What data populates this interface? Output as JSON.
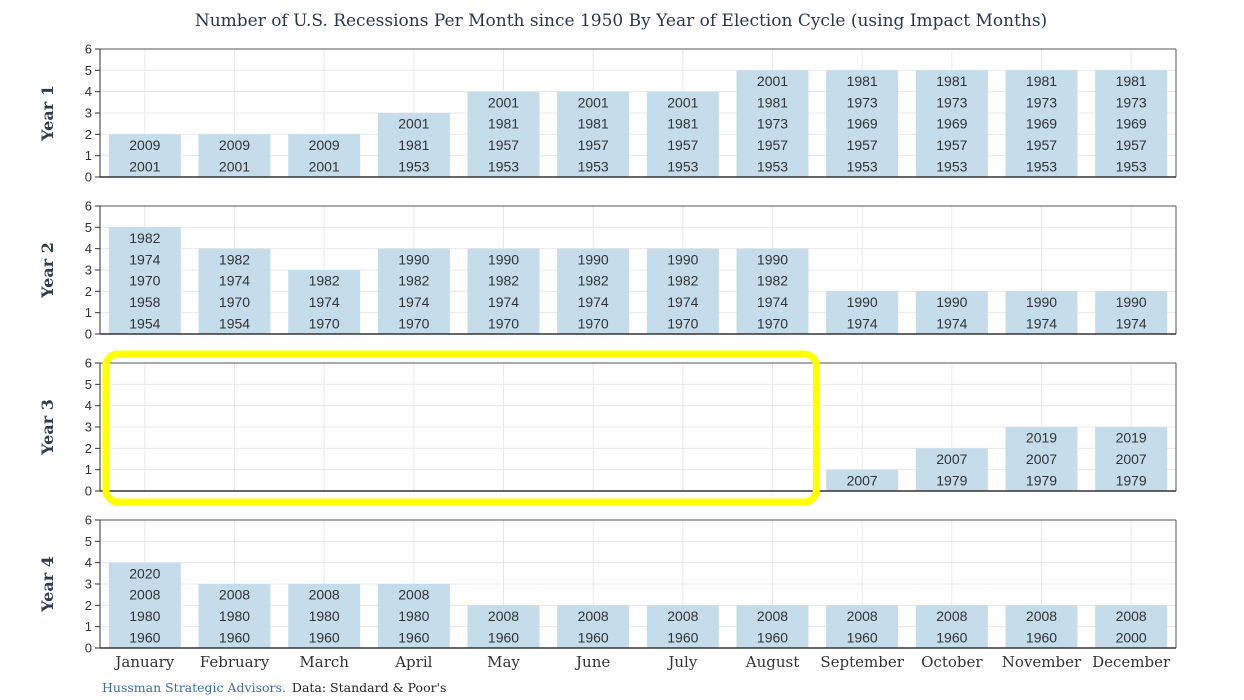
{
  "chart_data": {
    "type": "bar",
    "title": "Number of U.S. Recessions Per Month since 1950 By Year of Election Cycle (using Impact Months)",
    "categories": [
      "January",
      "February",
      "March",
      "April",
      "May",
      "June",
      "July",
      "August",
      "September",
      "October",
      "November",
      "December"
    ],
    "ylim": [
      0,
      6
    ],
    "yticks": [
      "0",
      "1",
      "2",
      "3",
      "4",
      "5",
      "6"
    ],
    "grid": true,
    "panels": [
      {
        "name": "Year 1",
        "values": [
          2,
          2,
          2,
          3,
          4,
          4,
          4,
          5,
          5,
          5,
          5,
          5
        ],
        "labels": [
          [
            "2001",
            "2009"
          ],
          [
            "2001",
            "2009"
          ],
          [
            "2001",
            "2009"
          ],
          [
            "1953",
            "1981",
            "2001"
          ],
          [
            "1953",
            "1957",
            "1981",
            "2001"
          ],
          [
            "1953",
            "1957",
            "1981",
            "2001"
          ],
          [
            "1953",
            "1957",
            "1981",
            "2001"
          ],
          [
            "1953",
            "1957",
            "1973",
            "1981",
            "2001"
          ],
          [
            "1953",
            "1957",
            "1969",
            "1973",
            "1981"
          ],
          [
            "1953",
            "1957",
            "1969",
            "1973",
            "1981"
          ],
          [
            "1953",
            "1957",
            "1969",
            "1973",
            "1981"
          ],
          [
            "1953",
            "1957",
            "1969",
            "1973",
            "1981"
          ]
        ]
      },
      {
        "name": "Year 2",
        "values": [
          5,
          4,
          3,
          4,
          4,
          4,
          4,
          4,
          2,
          2,
          2,
          2
        ],
        "labels": [
          [
            "1954",
            "1958",
            "1970",
            "1974",
            "1982"
          ],
          [
            "1954",
            "1970",
            "1974",
            "1982"
          ],
          [
            "1970",
            "1974",
            "1982"
          ],
          [
            "1970",
            "1974",
            "1982",
            "1990"
          ],
          [
            "1970",
            "1974",
            "1982",
            "1990"
          ],
          [
            "1970",
            "1974",
            "1982",
            "1990"
          ],
          [
            "1970",
            "1974",
            "1982",
            "1990"
          ],
          [
            "1970",
            "1974",
            "1982",
            "1990"
          ],
          [
            "1974",
            "1990"
          ],
          [
            "1974",
            "1990"
          ],
          [
            "1974",
            "1990"
          ],
          [
            "1974",
            "1990"
          ]
        ]
      },
      {
        "name": "Year 3",
        "values": [
          0,
          0,
          0,
          0,
          0,
          0,
          0,
          0,
          1,
          2,
          3,
          3
        ],
        "labels": [
          [],
          [],
          [],
          [],
          [],
          [],
          [],
          [],
          [
            "2007"
          ],
          [
            "1979",
            "2007"
          ],
          [
            "1979",
            "2007",
            "2019"
          ],
          [
            "1979",
            "2007",
            "2019"
          ]
        ],
        "highlight": {
          "from": "January",
          "to": "August",
          "color": "#ffff00"
        }
      },
      {
        "name": "Year 4",
        "values": [
          4,
          3,
          3,
          3,
          2,
          2,
          2,
          2,
          2,
          2,
          2,
          2
        ],
        "labels": [
          [
            "1960",
            "1980",
            "2008",
            "2020"
          ],
          [
            "1960",
            "1980",
            "2008"
          ],
          [
            "1960",
            "1980",
            "2008"
          ],
          [
            "1960",
            "1980",
            "2008"
          ],
          [
            "1960",
            "2008"
          ],
          [
            "1960",
            "2008"
          ],
          [
            "1960",
            "2008"
          ],
          [
            "1960",
            "2008"
          ],
          [
            "1960",
            "2008"
          ],
          [
            "1960",
            "2008"
          ],
          [
            "1960",
            "2008"
          ],
          [
            "2000",
            "2008"
          ]
        ]
      }
    ]
  },
  "colors": {
    "bar": "#c5dceb",
    "axis": "#333333",
    "grid": "#e8e8e8",
    "highlight": "#ffff00",
    "title": "#2a3550",
    "source_link": "#3a6ea5"
  },
  "footer": {
    "source": "Hussman Strategic Advisors.",
    "data_note": "Data: Standard & Poor's"
  }
}
